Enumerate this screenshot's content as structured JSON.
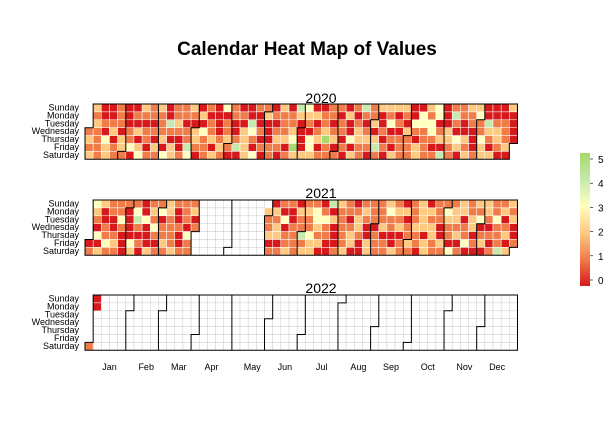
{
  "chart_data": {
    "type": "heatmap",
    "title": "Calendar Heat Map of Values",
    "years": [
      "2020",
      "2021",
      "2022"
    ],
    "day_labels": [
      "Sunday",
      "Monday",
      "Tuesday",
      "Wednesday",
      "Thursday",
      "Friday",
      "Saturday"
    ],
    "month_labels": [
      "Jan",
      "Feb",
      "Mar",
      "Apr",
      "May",
      "Jun",
      "Jul",
      "Aug",
      "Sep",
      "Oct",
      "Nov",
      "Dec"
    ],
    "legend": {
      "ticks": [
        "5",
        "4",
        "3",
        "2",
        "1",
        "0"
      ],
      "placement": "right",
      "min": 0,
      "max": 5
    },
    "data_coverage": [
      {
        "year": "2020",
        "start": "2020-01-01",
        "end": "2020-12-31"
      },
      {
        "year": "2021",
        "start": "2021-01-01",
        "end": "2021-03-31"
      },
      {
        "year": "2021",
        "start": "2021-05-31",
        "end": "2021-12-31"
      },
      {
        "year": "2022",
        "start": "2022-01-01",
        "end": "2022-01-03"
      }
    ],
    "value_distribution": "mostly 0–2, occasional 3–5",
    "colors": [
      "#d7191c",
      "#f07c4a",
      "#fec980",
      "#ffffbf",
      "#c7e9ad",
      "#a6d96a"
    ]
  }
}
